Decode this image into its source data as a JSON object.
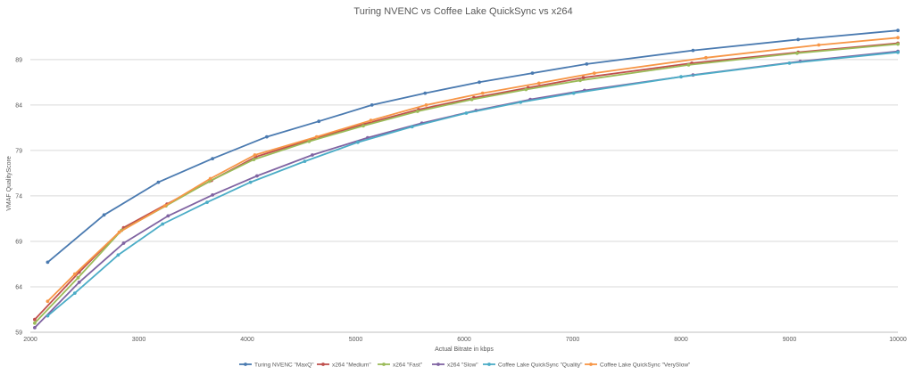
{
  "chart_data": {
    "type": "line",
    "title": "Turing NVENC vs Coffee Lake QuickSync vs x264",
    "xlabel": "Actual Bitrate in kbps",
    "ylabel": "VMAF QualityScore",
    "xlim": [
      2000,
      10000
    ],
    "ylim": [
      59,
      93
    ],
    "x_ticks": [
      2000,
      3000,
      4000,
      5000,
      6000,
      7000,
      8000,
      9000,
      10000
    ],
    "y_ticks": [
      59,
      64,
      69,
      74,
      79,
      84,
      89
    ],
    "grid": "horizontal",
    "legend_position": "bottom",
    "series": [
      {
        "name": "Turing NVENC \"MaxQ\"",
        "color": "#4a7ab0",
        "x": [
          2160,
          2680,
          3180,
          3680,
          4180,
          4660,
          5150,
          5640,
          6140,
          6630,
          7130,
          8110,
          9080,
          10000
        ],
        "y": [
          66.7,
          71.9,
          75.5,
          78.1,
          80.5,
          82.2,
          84.0,
          85.3,
          86.5,
          87.5,
          88.5,
          90.0,
          91.2,
          92.2
        ]
      },
      {
        "name": "x264 \"Medium\"",
        "color": "#c0504d",
        "x": [
          2040,
          2450,
          2860,
          3260,
          3670,
          4080,
          4590,
          5080,
          5580,
          6090,
          6590,
          7100,
          8100,
          9080,
          10000
        ],
        "y": [
          60.4,
          65.6,
          70.5,
          73.1,
          75.7,
          78.3,
          80.2,
          81.9,
          83.5,
          84.8,
          85.9,
          87.0,
          88.6,
          89.8,
          90.8
        ]
      },
      {
        "name": "x264 \"Fast\"",
        "color": "#9bbb59",
        "x": [
          2040,
          2440,
          2840,
          3250,
          3650,
          4060,
          4570,
          5070,
          5570,
          6070,
          6570,
          7070,
          8070,
          9070,
          10000
        ],
        "y": [
          60.0,
          65.0,
          70.2,
          72.9,
          75.6,
          78.0,
          80.0,
          81.7,
          83.3,
          84.6,
          85.7,
          86.7,
          88.4,
          89.7,
          90.7
        ]
      },
      {
        "name": "x264 \"Slow\"",
        "color": "#8064a2",
        "x": [
          2040,
          2450,
          2860,
          3270,
          3680,
          4090,
          4600,
          5110,
          5610,
          6110,
          6610,
          7110,
          8110,
          9100,
          10000
        ],
        "y": [
          59.5,
          64.5,
          68.8,
          71.8,
          74.1,
          76.2,
          78.5,
          80.4,
          82.0,
          83.4,
          84.6,
          85.6,
          87.3,
          88.8,
          89.9
        ]
      },
      {
        "name": "Coffee Lake QuickSync \"Quality\"",
        "color": "#4bacc6",
        "x": [
          2160,
          2410,
          2810,
          3220,
          3630,
          4030,
          4530,
          5020,
          5520,
          6020,
          6520,
          7010,
          8000,
          9000,
          10000
        ],
        "y": [
          60.8,
          63.3,
          67.5,
          70.9,
          73.3,
          75.5,
          77.8,
          79.9,
          81.6,
          83.1,
          84.3,
          85.3,
          87.1,
          88.6,
          89.8
        ]
      },
      {
        "name": "Coffee Lake QuickSync \"VerySlow\"",
        "color": "#f79646",
        "x": [
          2160,
          2410,
          2820,
          3240,
          3660,
          4070,
          4640,
          5140,
          5650,
          6170,
          6690,
          7200,
          8230,
          9270,
          10000
        ],
        "y": [
          62.4,
          65.4,
          70.0,
          72.9,
          75.9,
          78.5,
          80.5,
          82.3,
          84.0,
          85.3,
          86.4,
          87.5,
          89.2,
          90.6,
          91.4
        ]
      }
    ]
  }
}
